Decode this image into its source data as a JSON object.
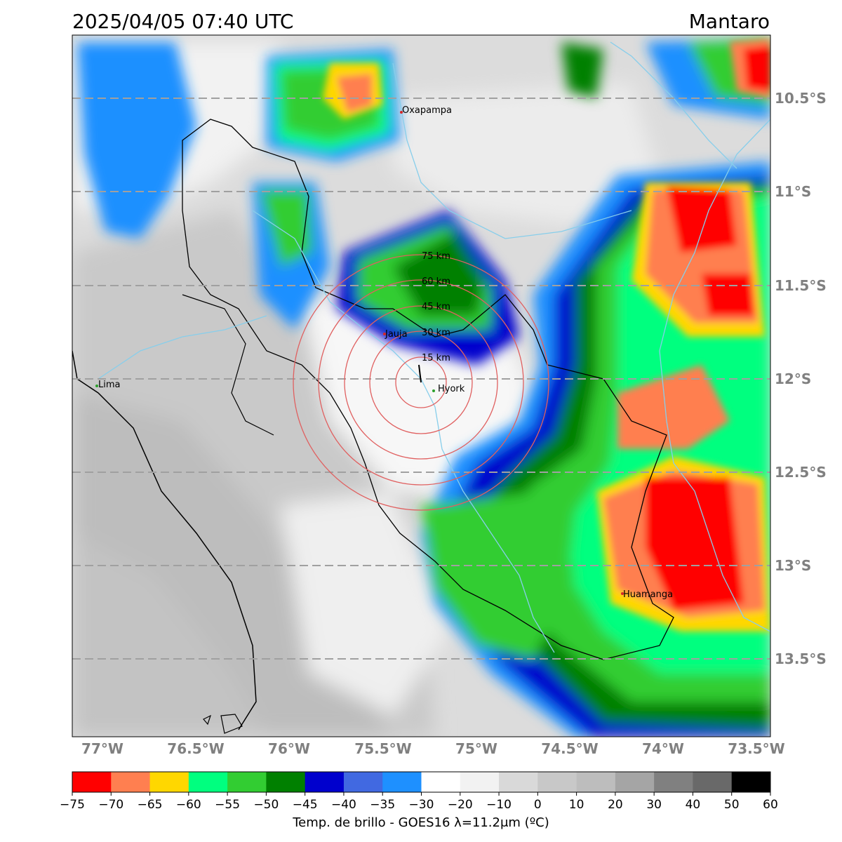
{
  "title": "2025/04/05 07:40 UTC",
  "region": "Mantaro",
  "lat_labels": [
    "10.5°S",
    "11°S",
    "11.5°S",
    "12°S",
    "12.5°S",
    "13°S",
    "13.5°S"
  ],
  "lon_labels": [
    "77°W",
    "76.5°W",
    "76°W",
    "75.5°W",
    "75°W",
    "74.5°W",
    "74°W",
    "73.5°W"
  ],
  "places": [
    {
      "name": "Oxapampa",
      "color": "#d62728"
    },
    {
      "name": "Jauja",
      "color": "#d62728"
    },
    {
      "name": "Hyork",
      "color": "#2ca02c"
    },
    {
      "name": "Lima",
      "color": "#2ca02c"
    },
    {
      "name": "Huamanga",
      "color": "#d62728"
    }
  ],
  "range_rings": [
    "15 km",
    "30 km",
    "45 km",
    "60 km",
    "75 km"
  ],
  "ring_color": "#e06060",
  "colorbar": {
    "label": "Temp. de brillo - GOES16 λ=11.2μm (ºC)",
    "ticks": [
      "−75",
      "−70",
      "−65",
      "−60",
      "−55",
      "−50",
      "−45",
      "−40",
      "−35",
      "−30",
      "−20",
      "−10",
      "0",
      "10",
      "20",
      "30",
      "40",
      "50",
      "60"
    ],
    "colors": [
      "#ff0000",
      "#ff7f50",
      "#ffd700",
      "#00ff7f",
      "#32cd32",
      "#008000",
      "#0000cd",
      "#4169e1",
      "#1e90ff",
      "#ffffff",
      "#f2f2f2",
      "#d9d9d9",
      "#c8c8c8",
      "#bdbdbd",
      "#a5a5a5",
      "#808080",
      "#696969",
      "#000000"
    ]
  }
}
